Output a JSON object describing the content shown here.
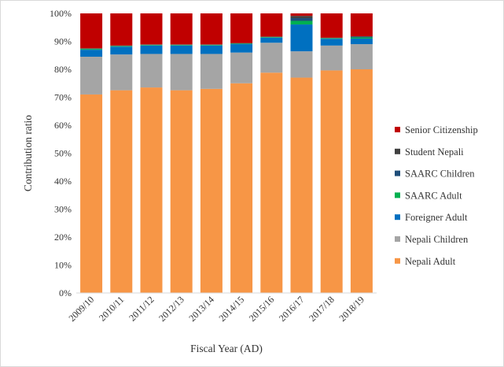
{
  "chart_data": {
    "type": "bar",
    "stacked": true,
    "normalized": true,
    "title": "",
    "xlabel": "Fiscal Year (AD)",
    "ylabel": "Contribution  ratio",
    "ylim": [
      0,
      100
    ],
    "yticks": [
      "0%",
      "10%",
      "20%",
      "30%",
      "40%",
      "50%",
      "60%",
      "70%",
      "80%",
      "90%",
      "100%"
    ],
    "grid": false,
    "legend_position": "right",
    "categories": [
      "2009/10",
      "2010/11",
      "2011/12",
      "2012/13",
      "2013/14",
      "2014/15",
      "2015/16",
      "2016/17",
      "2017/18",
      "2018/19"
    ],
    "series": [
      {
        "name": "Nepali Adult",
        "color": "#f79646",
        "values": [
          71.0,
          72.5,
          73.5,
          72.5,
          73.0,
          75.0,
          78.8,
          77.8,
          79.6,
          80.0
        ]
      },
      {
        "name": "Nepali Children",
        "color": "#a5a5a5",
        "values": [
          13.5,
          12.8,
          12.0,
          13.0,
          12.5,
          11.0,
          10.7,
          9.5,
          8.9,
          9.0
        ]
      },
      {
        "name": "Foreigner Adult",
        "color": "#0070c0",
        "values": [
          2.5,
          2.8,
          3.0,
          3.0,
          3.0,
          3.0,
          1.8,
          9.7,
          2.4,
          2.0
        ]
      },
      {
        "name": "SAARC Adult",
        "color": "#00b050",
        "values": [
          0.3,
          0.2,
          0.2,
          0.2,
          0.2,
          0.2,
          0.2,
          1.3,
          0.2,
          0.4
        ]
      },
      {
        "name": "SAARC Children",
        "color": "#1f4e79",
        "values": [
          0.1,
          0.1,
          0.1,
          0.1,
          0.1,
          0.1,
          0.1,
          1.0,
          0.1,
          0.3
        ]
      },
      {
        "name": "Student Nepali",
        "color": "#404040",
        "values": [
          0.1,
          0.1,
          0.1,
          0.1,
          0.1,
          0.1,
          0.1,
          0.8,
          0.1,
          0.1
        ]
      },
      {
        "name": "Senior Citizenship",
        "color": "#c00000",
        "values": [
          12.5,
          11.5,
          11.1,
          11.1,
          11.1,
          10.6,
          8.3,
          0.9,
          8.7,
          8.2
        ]
      }
    ]
  }
}
